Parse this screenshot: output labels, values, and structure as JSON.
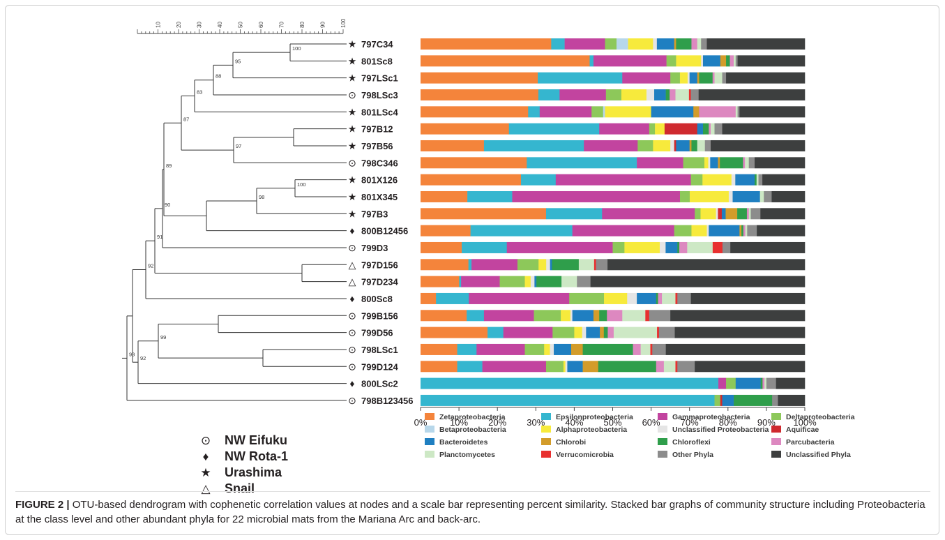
{
  "chart_data": {
    "type": "bar",
    "orientation": "horizontal",
    "stacked": true,
    "xlim": [
      0,
      100
    ],
    "x_ticks": [
      "0%",
      "10%",
      "20%",
      "30%",
      "40%",
      "50%",
      "60%",
      "70%",
      "80%",
      "90%",
      "100%"
    ],
    "scale_bar_ticks": [
      "10",
      "20",
      "30",
      "40",
      "50",
      "60",
      "70",
      "80",
      "90",
      "100"
    ],
    "categories": [
      "797C34",
      "801Sc8",
      "797LSc1",
      "798LSc3",
      "801LSc4",
      "797B12",
      "797B56",
      "798C346",
      "801X126",
      "801X345",
      "797B3",
      "800B12456",
      "799D3",
      "797D156",
      "797D234",
      "800Sc8",
      "799B156",
      "799D56",
      "798LSc1",
      "799D124",
      "800LSc2",
      "798B123456"
    ],
    "sites": [
      "Urashima",
      "Urashima",
      "Urashima",
      "NW Eifuku",
      "Urashima",
      "Urashima",
      "Urashima",
      "NW Eifuku",
      "Urashima",
      "Urashima",
      "Urashima",
      "NW Rota-1",
      "NW Eifuku",
      "Snail",
      "Snail",
      "NW Rota-1",
      "NW Eifuku",
      "NW Eifuku",
      "NW Eifuku",
      "NW Eifuku",
      "NW Rota-1",
      "NW Eifuku"
    ],
    "series": [
      {
        "name": "Zetaproteobacteria",
        "color": "#f4843b",
        "values": [
          34,
          44,
          30.5,
          30.5,
          28,
          23,
          16.5,
          27.5,
          26,
          12,
          32.5,
          13,
          10.5,
          12.5,
          10,
          4,
          12,
          17,
          9.5,
          9.5,
          0,
          0
        ]
      },
      {
        "name": "Epsilonproteobacteria",
        "color": "#35b6cf",
        "values": [
          3.5,
          1,
          22,
          5.5,
          3,
          23.5,
          26,
          28.5,
          9,
          11.5,
          14.5,
          26.5,
          11.5,
          0.8,
          0.5,
          8.5,
          4.5,
          4,
          5,
          6.5,
          77.5,
          76.5
        ]
      },
      {
        "name": "Gammaproteobacteria",
        "color": "#c2449f",
        "values": [
          10.5,
          19,
          12.5,
          12,
          13.5,
          13,
          14,
          12,
          35,
          43,
          24,
          26.5,
          27,
          12,
          10,
          26,
          13,
          12.5,
          12.5,
          16.5,
          2,
          0
        ]
      },
      {
        "name": "Deltaproteobacteria",
        "color": "#8dc85a",
        "values": [
          3,
          2.5,
          2.5,
          4,
          3,
          1.5,
          4,
          5.5,
          3,
          2.5,
          1.5,
          4.5,
          3,
          5.5,
          6.5,
          9,
          7,
          5.5,
          5,
          4.5,
          2.5,
          1.5
        ]
      },
      {
        "name": "Betaproteobacteria",
        "color": "#b7d7ea",
        "values": [
          3,
          0,
          0,
          0,
          0.5,
          0,
          0,
          0,
          0,
          0,
          0,
          0,
          0,
          0,
          0,
          0,
          0,
          0,
          0,
          0,
          0,
          0
        ]
      },
      {
        "name": "Alphaproteobacteria",
        "color": "#f7ea3c",
        "values": [
          6.5,
          6.5,
          2,
          6.5,
          12,
          2.5,
          4.5,
          1,
          7.5,
          10,
          4,
          4,
          9,
          2,
          1.5,
          6,
          2.5,
          2,
          1.5,
          0.5,
          0,
          0
        ]
      },
      {
        "name": "Unclassified Proteobacteria",
        "color": "#e5e5e5",
        "values": [
          1,
          0.5,
          0.5,
          2,
          0,
          0,
          1,
          0.5,
          1,
          1,
          0.5,
          0.5,
          1.5,
          1,
          1,
          2.5,
          0.5,
          1,
          1,
          0.5,
          0,
          0
        ]
      },
      {
        "name": "Aquificae",
        "color": "#cf2a2f",
        "values": [
          0,
          0,
          0,
          0,
          0,
          8.5,
          0.5,
          0,
          0,
          0,
          1,
          0,
          0,
          0,
          0,
          0,
          0,
          0,
          0,
          0,
          0,
          0.5
        ]
      },
      {
        "name": "Bacteroidetes",
        "color": "#1f7fc1",
        "values": [
          4.5,
          4.5,
          2,
          3,
          11,
          1.5,
          3.5,
          2,
          5,
          7,
          1,
          8,
          3,
          0.5,
          0.5,
          5,
          5.5,
          3.5,
          4.5,
          4,
          6.5,
          3
        ]
      },
      {
        "name": "Chlorobi",
        "color": "#d39c2a",
        "values": [
          0.5,
          1.5,
          0.5,
          0,
          1.5,
          0,
          0.5,
          0.5,
          0,
          0,
          3,
          0.5,
          0,
          0,
          0,
          0,
          1.5,
          1,
          3,
          4,
          0,
          0
        ]
      },
      {
        "name": "Chloroflexi",
        "color": "#2f9e4b",
        "values": [
          4,
          1,
          3.5,
          1,
          0,
          1.5,
          1.5,
          6,
          0.5,
          0,
          2.5,
          0.5,
          0.5,
          7,
          6.5,
          0.5,
          2,
          1,
          13,
          15,
          0.5,
          10
        ]
      },
      {
        "name": "Parcubacteria",
        "color": "#dd88c0",
        "values": [
          1.5,
          1,
          0.5,
          1.5,
          9.5,
          0.5,
          0,
          0.5,
          0,
          0,
          0.5,
          0.5,
          2,
          0,
          0,
          1,
          4,
          1.5,
          2,
          2,
          0.5,
          0
        ]
      },
      {
        "name": "Planctomycetes",
        "color": "#cde8c5",
        "values": [
          1,
          0.5,
          2,
          3.5,
          0.5,
          1,
          2,
          1,
          0.5,
          1,
          0.5,
          0.5,
          6.5,
          4,
          4,
          3.5,
          6,
          11,
          2.5,
          3,
          0.5,
          0
        ]
      },
      {
        "name": "Verrucomicrobia",
        "color": "#e8302f",
        "values": [
          0,
          0,
          0,
          0.5,
          0,
          0,
          0,
          0,
          0,
          0,
          0,
          0,
          2.5,
          0.5,
          0,
          0.5,
          1,
          0.5,
          0.5,
          0.5,
          0,
          0
        ]
      },
      {
        "name": "Other Phyla",
        "color": "#8c8c8c",
        "values": [
          1.5,
          0.5,
          1,
          2,
          0.5,
          2,
          1.5,
          1.5,
          1,
          2,
          2.5,
          2.5,
          2,
          3,
          3.5,
          3.5,
          5.5,
          4,
          3.5,
          4.5,
          2.5,
          1.5
        ]
      },
      {
        "name": "Unclassified Phyla",
        "color": "#3d3f3f",
        "values": [
          25.5,
          17.5,
          20.5,
          27.5,
          17,
          21.5,
          24.5,
          13,
          11,
          8.5,
          11.5,
          12.5,
          19,
          51.5,
          55.5,
          29.5,
          35,
          33,
          36,
          28.5,
          7.5,
          7
        ]
      }
    ],
    "node_labels": [
      "100",
      "95",
      "88",
      "83",
      "97",
      "87",
      "100",
      "98",
      "89",
      "90",
      "91",
      "92",
      "99",
      "92",
      "93"
    ]
  },
  "site_legend": [
    {
      "symbol": "⊙",
      "name": "NW Eifuku"
    },
    {
      "symbol": "♦",
      "name": "NW Rota-1"
    },
    {
      "symbol": "★",
      "name": "Urashima"
    },
    {
      "symbol": "△",
      "name": "Snail"
    }
  ],
  "site_symbols": {
    "NW Eifuku": "⊙",
    "NW Rota-1": "♦",
    "Urashima": "★",
    "Snail": "△"
  },
  "caption": {
    "label": "FIGURE 2 |",
    "text": " OTU-based dendrogram with cophenetic correlation values at nodes and a scale bar representing percent similarity. Stacked bar graphs of community structure including Proteobacteria at the class level and other abundant phyla for 22 microbial mats from the Mariana Arc and back-arc."
  }
}
